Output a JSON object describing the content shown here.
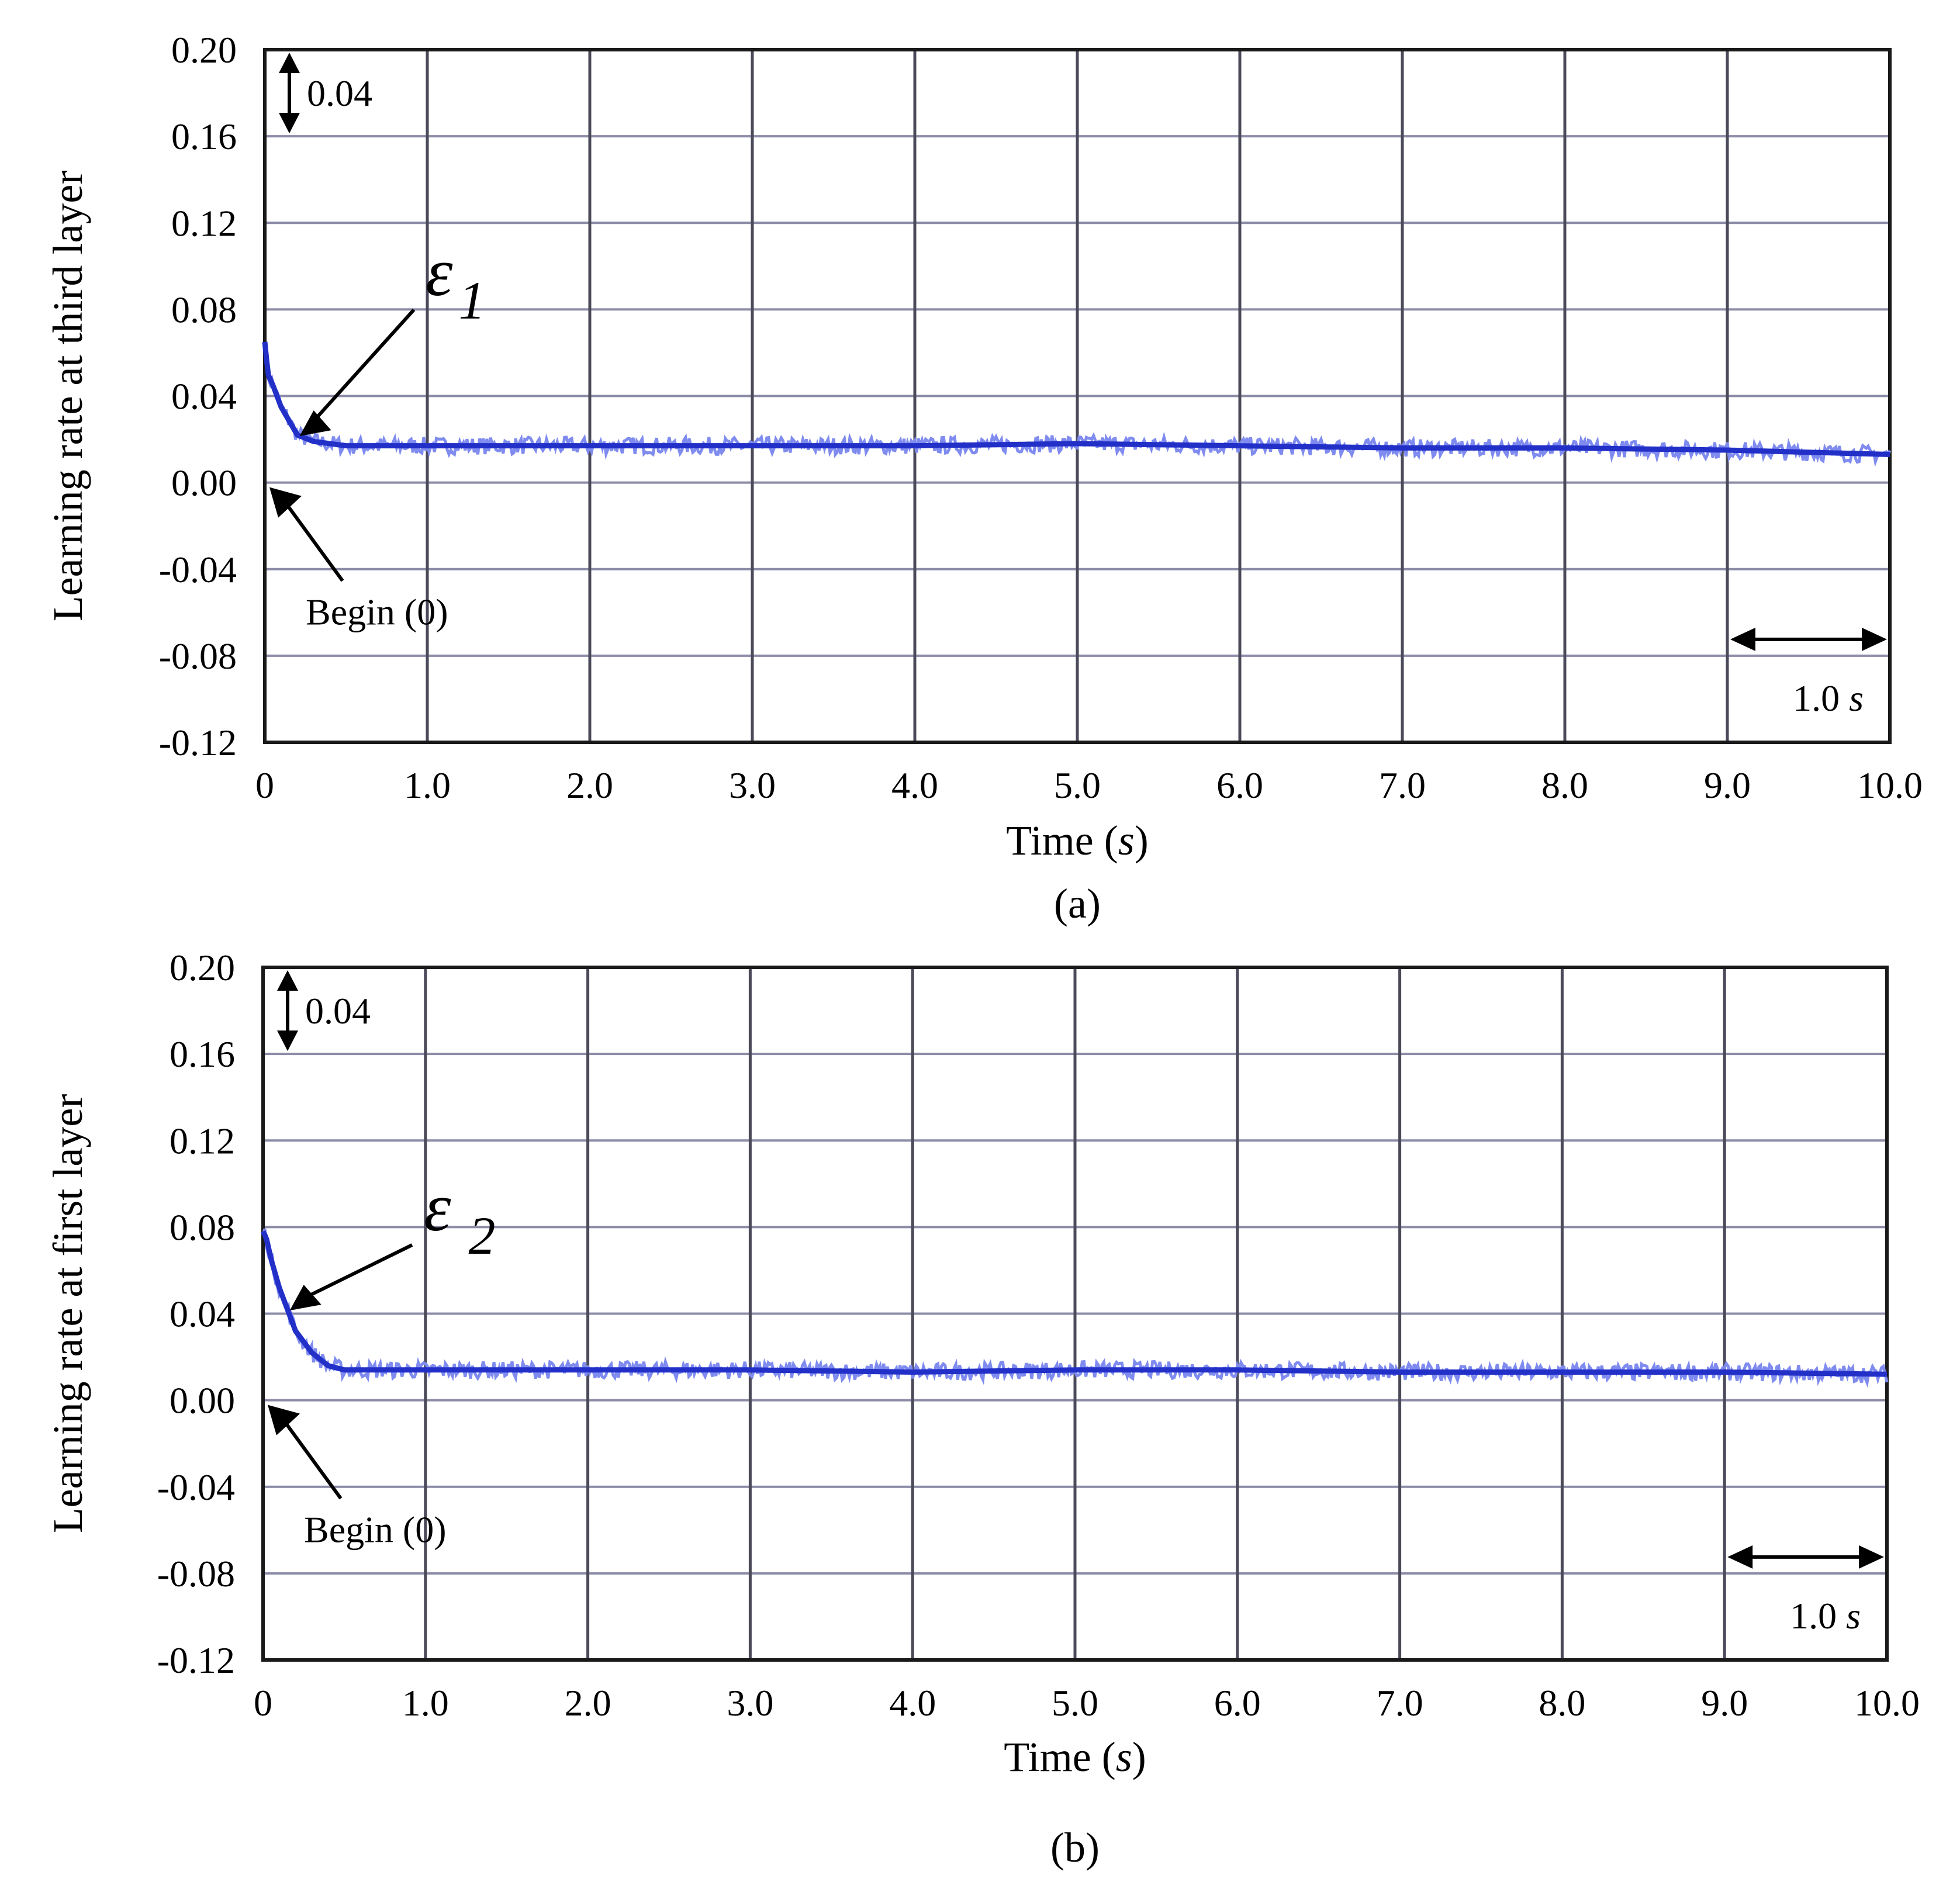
{
  "chart_data": [
    {
      "type": "line",
      "id": "a",
      "caption": "(a)",
      "ylabel": "Learning rate at third layer",
      "xlabel": "Time",
      "xlabel_unit": "s",
      "x_ticks": [
        "0",
        "1.0",
        "2.0",
        "3.0",
        "4.0",
        "5.0",
        "6.0",
        "7.0",
        "8.0",
        "9.0",
        "10.0"
      ],
      "y_ticks": [
        "0.20",
        "0.16",
        "0.12",
        "0.08",
        "0.04",
        "0.00",
        "-0.04",
        "-0.08",
        "-0.12"
      ],
      "xlim": [
        0,
        10
      ],
      "ylim": [
        -0.12,
        0.2
      ],
      "grid": true,
      "series": [
        {
          "name": "ε1",
          "symbol": "ε",
          "subscript": "1",
          "color": "#2230c8",
          "x": [
            0,
            0.02,
            0.05,
            0.1,
            0.2,
            0.3,
            0.5,
            1,
            2,
            3,
            4,
            5,
            6,
            7,
            8,
            9,
            10
          ],
          "y": [
            0.065,
            0.05,
            0.045,
            0.035,
            0.022,
            0.019,
            0.017,
            0.017,
            0.017,
            0.017,
            0.017,
            0.018,
            0.017,
            0.016,
            0.016,
            0.015,
            0.013
          ]
        }
      ],
      "annotations": {
        "scale_y": "0.04",
        "scale_x_value": "1.0",
        "scale_x_unit": "s",
        "begin": "Begin (0)"
      }
    },
    {
      "type": "line",
      "id": "b",
      "caption": "(b)",
      "ylabel": "Learning rate at first layer",
      "xlabel": "Time",
      "xlabel_unit": "s",
      "x_ticks": [
        "0",
        "1.0",
        "2.0",
        "3.0",
        "4.0",
        "5.0",
        "6.0",
        "7.0",
        "8.0",
        "9.0",
        "10.0"
      ],
      "y_ticks": [
        "0.20",
        "0.16",
        "0.12",
        "0.08",
        "0.04",
        "0.00",
        "-0.04",
        "-0.08",
        "-0.12"
      ],
      "xlim": [
        0,
        10
      ],
      "ylim": [
        -0.12,
        0.2
      ],
      "grid": true,
      "series": [
        {
          "name": "ε2",
          "symbol": "ε",
          "subscript": "2",
          "color": "#2230c8",
          "x": [
            0,
            0.02,
            0.05,
            0.1,
            0.15,
            0.2,
            0.3,
            0.4,
            0.5,
            1,
            2,
            3,
            4,
            5,
            6,
            7,
            8,
            9,
            10
          ],
          "y": [
            0.078,
            0.075,
            0.065,
            0.052,
            0.042,
            0.032,
            0.022,
            0.016,
            0.014,
            0.014,
            0.014,
            0.014,
            0.013,
            0.014,
            0.014,
            0.013,
            0.013,
            0.013,
            0.012
          ]
        }
      ],
      "annotations": {
        "scale_y": "0.04",
        "scale_x_value": "1.0",
        "scale_x_unit": "s",
        "begin": "Begin (0)"
      }
    }
  ]
}
